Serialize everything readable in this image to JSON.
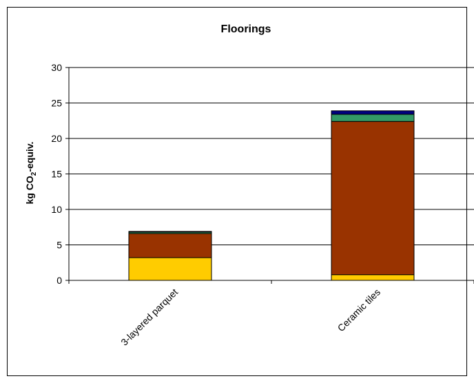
{
  "chart_data": {
    "type": "bar",
    "stacked": true,
    "title": "Floorings",
    "ylabel_parts": [
      "kg CO",
      "2",
      "-equiv."
    ],
    "xlabel": "",
    "categories": [
      "3-layered parquet",
      "Ceramic tiles"
    ],
    "series": [
      {
        "color": "#FFCC00",
        "values": [
          3.2,
          0.8
        ]
      },
      {
        "color": "#993300",
        "values": [
          3.4,
          21.6
        ]
      },
      {
        "color": "#339966",
        "values": [
          0.2,
          1.0
        ]
      },
      {
        "color": "#000080",
        "values": [
          0.1,
          0.5
        ]
      }
    ],
    "ylim": [
      0,
      30
    ],
    "yticks": [
      "0",
      "5",
      "10",
      "15",
      "20",
      "25",
      "30"
    ],
    "grid": true,
    "legend": "none"
  }
}
